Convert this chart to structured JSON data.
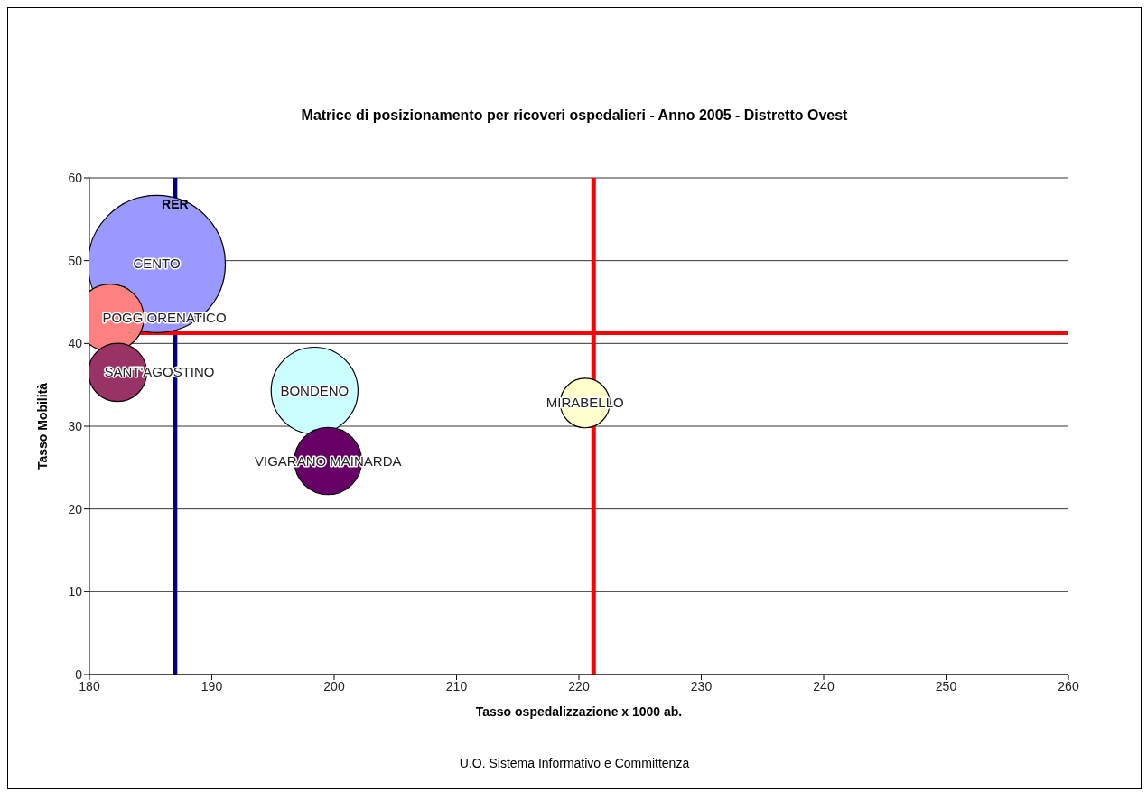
{
  "chart_data": {
    "type": "bubble",
    "title": "Matrice di posizionamento per ricoveri ospedalieri - Anno 2005 - Distretto Ovest",
    "xlabel": "Tasso ospedalizzazione x 1000 ab.",
    "ylabel": "Tasso Mobilità",
    "xlim": [
      180,
      260
    ],
    "xticks": [
      180,
      190,
      200,
      210,
      220,
      230,
      240,
      250,
      260
    ],
    "ylim": [
      0,
      60
    ],
    "yticks": [
      0,
      10,
      20,
      30,
      40,
      50,
      60
    ],
    "grid": "y",
    "legend": false,
    "series": [
      {
        "name": "CENTO",
        "color": "#9999ff",
        "x": [
          185.5
        ],
        "values": [
          49.6
        ],
        "sizes": [
          1
        ]
      },
      {
        "name": "POGGIORENATICO",
        "color": "#ff8080",
        "x": [
          181.7
        ],
        "values": [
          43.1
        ],
        "sizes": [
          0.24
        ]
      },
      {
        "name": "SANT'AGOSTINO",
        "color": "#993366",
        "x": [
          182.3
        ],
        "values": [
          36.5
        ],
        "sizes": [
          0.18
        ]
      },
      {
        "name": "BONDENO",
        "color": "#ccffff",
        "x": [
          198.4
        ],
        "values": [
          34.3
        ],
        "sizes": [
          0.4
        ]
      },
      {
        "name": "VIGARANO MAINARDA",
        "color": "#660066",
        "x": [
          199.5
        ],
        "values": [
          25.8
        ],
        "sizes": [
          0.24
        ]
      },
      {
        "name": "MIRABELLO",
        "color": "#ffffcc",
        "x": [
          220.5
        ],
        "values": [
          32.8
        ],
        "sizes": [
          0.13
        ]
      }
    ],
    "ref_lines": [
      {
        "axis": "x",
        "value": 187,
        "label": "RER",
        "color": "#000080"
      },
      {
        "axis": "x",
        "value": 221.2,
        "color": "#ff0000"
      },
      {
        "axis": "y",
        "value": 41.3,
        "color": "#ff0000"
      }
    ],
    "annotations": [
      "U.O. Sistema Informativo e Committenza"
    ]
  }
}
